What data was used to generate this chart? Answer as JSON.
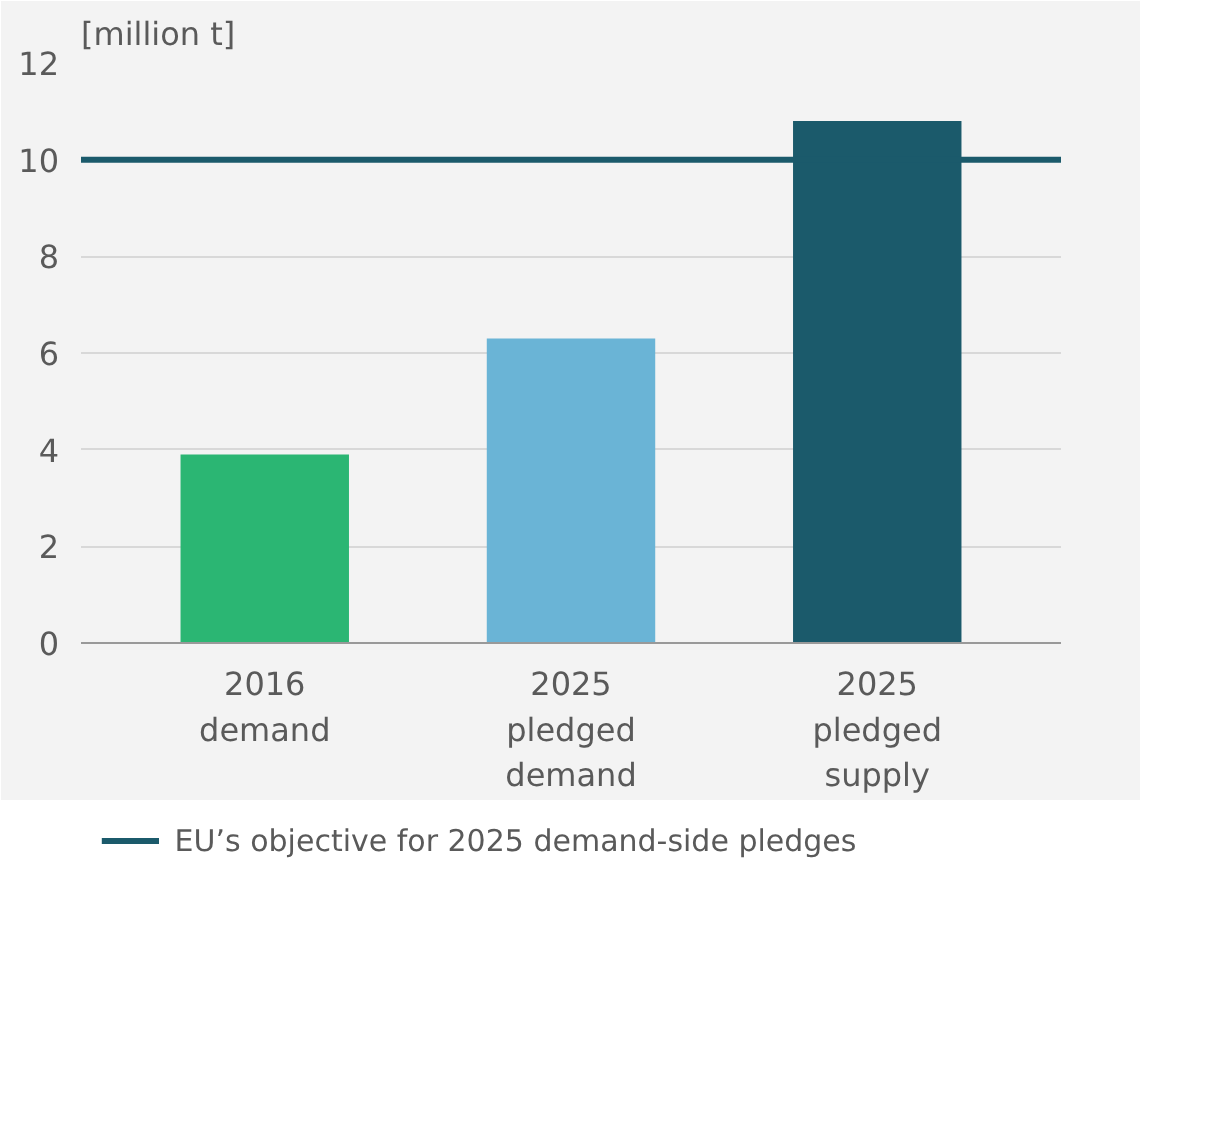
{
  "chart_data": {
    "type": "bar",
    "ylabel": "[million t]",
    "categories": [
      "2016\ndemand",
      "2025\npledged\ndemand",
      "2025\npledged\nsupply"
    ],
    "values": [
      3.9,
      6.3,
      10.8
    ],
    "colors": [
      "#2bb673",
      "#6ab4d6",
      "#1b5a6b"
    ],
    "ylim": [
      0,
      12
    ],
    "yticks": [
      0,
      2,
      4,
      6,
      8,
      10,
      12
    ],
    "grid": "y",
    "ref_lines": [
      {
        "axis": "y",
        "value": 10,
        "label": "EU’s objective for 2025 demand-side pledges",
        "color": "#1b5a6b"
      }
    ],
    "legend": "bottom"
  }
}
